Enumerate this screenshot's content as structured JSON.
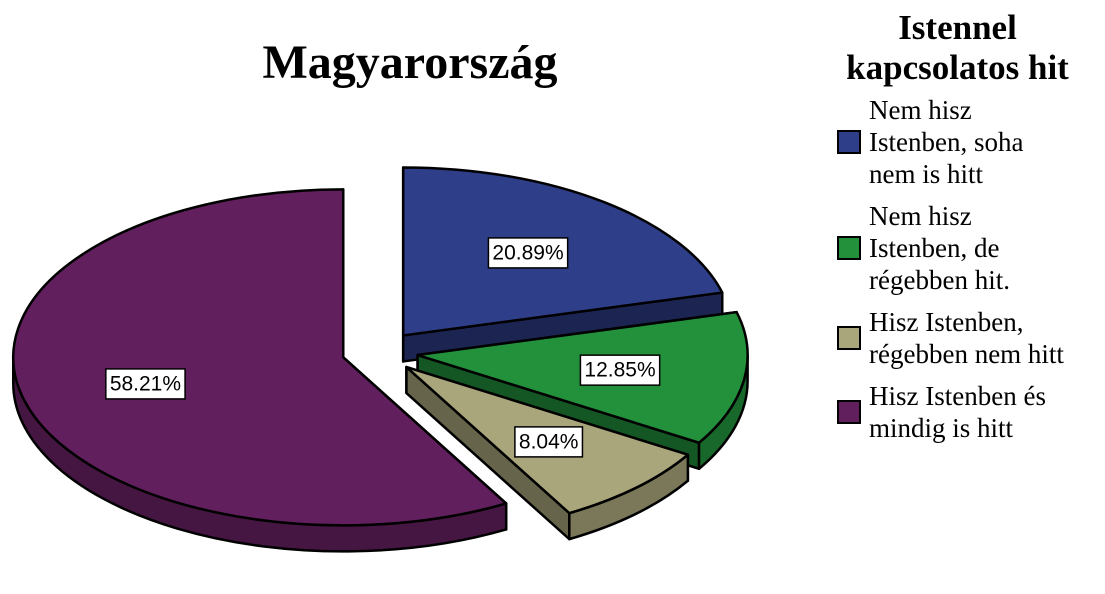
{
  "chart_data": {
    "type": "pie",
    "title": "Magyarország",
    "legend_title": "Istennel kapcsolatos hit",
    "categories": [
      "Nem hisz Istenben, soha nem is hitt",
      "Nem hisz Istenben, de régebben hit.",
      "Hisz Istenben, régebben nem hitt",
      "Hisz Istenben és mindig is hitt"
    ],
    "values": [
      20.89,
      12.85,
      8.04,
      58.21
    ],
    "value_labels": [
      "20.89%",
      "12.85%",
      "8.04%",
      "58.21%"
    ],
    "colors": [
      "#2f3e88",
      "#23913c",
      "#aaa67c",
      "#611f5d"
    ],
    "legend": "right"
  }
}
